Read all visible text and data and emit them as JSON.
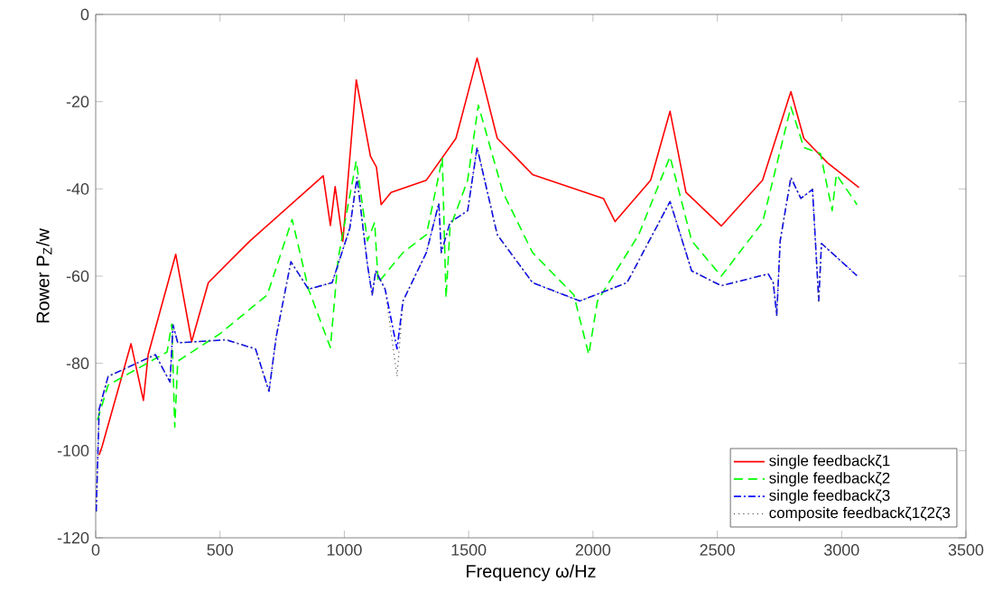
{
  "chart_data": {
    "type": "line",
    "xlabel": "Frequency ω/Hz",
    "ylabel": "Rower P$_{Z}$/w",
    "xlim": [
      0,
      3500
    ],
    "ylim": [
      -120,
      0
    ],
    "xticks": [
      0,
      500,
      1000,
      1500,
      2000,
      2500,
      3000,
      3500
    ],
    "yticks": [
      -120,
      -100,
      -80,
      -60,
      -40,
      -20,
      0
    ],
    "grid": false,
    "legend": "bottom right",
    "marker": "none",
    "series": [
      {
        "name": "single feedbackζ1",
        "color": "#ff0000",
        "line_style": "solid",
        "x": [
          14,
          26,
          142,
          192,
          211,
          322,
          386,
          453,
          619,
          915,
          944,
          963,
          994,
          1048,
          1105,
          1129,
          1148,
          1188,
          1330,
          1449,
          1534,
          1615,
          1757,
          2042,
          2089,
          2232,
          2310,
          2374,
          2516,
          2682,
          2796,
          2848,
          2943,
          3070
        ],
        "values": [
          -101,
          -99,
          -75.5,
          -88.5,
          -78,
          -55,
          -75,
          -61.5,
          -52,
          -37,
          -48.4,
          -39.5,
          -52,
          -15,
          -32.5,
          -35,
          -43.6,
          -40.8,
          -38,
          -28.4,
          -10,
          -28.4,
          -36.7,
          -42.2,
          -47.5,
          -38,
          -22.2,
          -40.8,
          -48.5,
          -38,
          -17.7,
          -28.4,
          -34,
          -39.7
        ]
      },
      {
        "name": "single feedbackζ2",
        "color": "#00ff00",
        "line_style": "dashed",
        "x": [
          7,
          50,
          287,
          306,
          318,
          330,
          500,
          690,
          790,
          856,
          944,
          975,
          1048,
          1093,
          1122,
          1136,
          1236,
          1330,
          1394,
          1409,
          1425,
          1496,
          1539,
          1638,
          1757,
          1923,
          1983,
          2018,
          2184,
          2310,
          2397,
          2516,
          2682,
          2796,
          2848,
          2915,
          2962,
          2979,
          3062
        ],
        "values": [
          -93,
          -85,
          -77.4,
          -71,
          -94.6,
          -79.5,
          -73.2,
          -64.3,
          -47,
          -63,
          -76.4,
          -56,
          -33.6,
          -51.9,
          -47.7,
          -61.5,
          -54.6,
          -50.5,
          -33,
          -65,
          -49,
          -38,
          -20.8,
          -40.8,
          -54.6,
          -64.3,
          -78,
          -65.7,
          -50.5,
          -32.6,
          -51.9,
          -60,
          -47.7,
          -21.2,
          -30.5,
          -31.9,
          -45,
          -36.7,
          -43.6
        ]
      },
      {
        "name": "single feedbackζ3",
        "color": "#0000ff",
        "line_style": "dashdot",
        "x": [
          2,
          14,
          50,
          240,
          299,
          311,
          330,
          524,
          643,
          697,
          726,
          785,
          856,
          951,
          1022,
          1051,
          1093,
          1112,
          1126,
          1164,
          1212,
          1236,
          1330,
          1380,
          1390,
          1425,
          1496,
          1534,
          1615,
          1757,
          1947,
          2137,
          2310,
          2397,
          2516,
          2705,
          2725,
          2739,
          2753,
          2796,
          2836,
          2883,
          2908,
          2919,
          3062
        ],
        "values": [
          -114,
          -90.5,
          -83,
          -78,
          -84.3,
          -71.2,
          -75.3,
          -74.6,
          -76.7,
          -86.4,
          -73.9,
          -56.7,
          -63,
          -61.5,
          -49,
          -37.4,
          -57.4,
          -64.3,
          -58.8,
          -63,
          -76.7,
          -65.7,
          -54.6,
          -43.3,
          -54.6,
          -47.7,
          -45,
          -30.5,
          -50.5,
          -61.5,
          -65.7,
          -61.5,
          -42.9,
          -58.8,
          -62.2,
          -59.5,
          -61.5,
          -69,
          -51.9,
          -37.4,
          -42.2,
          -40.1,
          -65.7,
          -52.5,
          -59.9
        ]
      },
      {
        "name": "composite feedbackζ1ζ2ζ3",
        "color": "#555555",
        "line_style": "dotted",
        "x": [
          2,
          14,
          50,
          240,
          299,
          311,
          330,
          524,
          643,
          697,
          726,
          785,
          856,
          951,
          1022,
          1051,
          1093,
          1112,
          1126,
          1164,
          1212,
          1236,
          1330,
          1380,
          1390,
          1425,
          1496,
          1534,
          1615,
          1757,
          1947,
          2137,
          2310,
          2397,
          2516,
          2705,
          2725,
          2739,
          2753,
          2796,
          2836,
          2883,
          2908,
          2919,
          3062
        ],
        "values": [
          -114,
          -90.5,
          -83,
          -78,
          -84.3,
          -71.2,
          -75.3,
          -74.6,
          -76.7,
          -86.4,
          -73.9,
          -56.7,
          -63,
          -61.5,
          -49,
          -37.4,
          -57.4,
          -64.3,
          -58.8,
          -63,
          -83,
          -65.7,
          -54.6,
          -43.3,
          -54.6,
          -47.7,
          -45,
          -30.5,
          -50.5,
          -61.5,
          -65.7,
          -61.5,
          -42.9,
          -58.8,
          -62.2,
          -59.5,
          -61.5,
          -69,
          -51.9,
          -37.4,
          -42.2,
          -40.1,
          -65.7,
          -52.5,
          -59.9
        ]
      }
    ]
  }
}
